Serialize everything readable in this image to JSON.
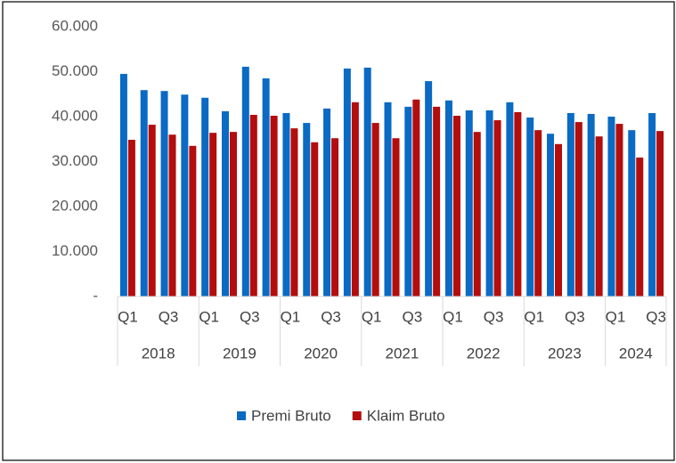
{
  "chart_data": {
    "type": "bar",
    "groups": [
      {
        "name": "2018",
        "quarters": [
          "Q1",
          null,
          "Q3",
          null
        ]
      },
      {
        "name": "2019",
        "quarters": [
          "Q1",
          null,
          "Q3",
          null
        ]
      },
      {
        "name": "2020",
        "quarters": [
          "Q1",
          null,
          "Q3",
          null
        ]
      },
      {
        "name": "2021",
        "quarters": [
          "Q1",
          null,
          "Q3",
          null
        ]
      },
      {
        "name": "2022",
        "quarters": [
          "Q1",
          null,
          "Q3",
          null
        ]
      },
      {
        "name": "2023",
        "quarters": [
          "Q1",
          null,
          "Q3",
          null
        ]
      },
      {
        "name": "2024",
        "quarters": [
          "Q1",
          null,
          "Q3"
        ]
      }
    ],
    "series": [
      {
        "name": "Premi Bruto",
        "color": "#0a6ac4",
        "values": [
          49500,
          45900,
          45700,
          44900,
          44200,
          41200,
          51100,
          48500,
          40800,
          38600,
          41800,
          50700,
          50900,
          43200,
          42200,
          47900,
          43600,
          41400,
          41400,
          43200,
          39800,
          36200,
          40800,
          40600,
          40000,
          37000,
          40800
        ]
      },
      {
        "name": "Klaim Bruto",
        "color": "#b30d0d",
        "values": [
          34850,
          38200,
          36000,
          33500,
          36400,
          36600,
          40400,
          40200,
          37400,
          34300,
          35200,
          43200,
          38600,
          35200,
          43800,
          42200,
          40200,
          36600,
          39200,
          41000,
          37000,
          33900,
          38800,
          35600,
          38400,
          30900,
          36800
        ]
      }
    ],
    "ylim": [
      0,
      60000
    ],
    "yticks": [
      {
        "value": 0,
        "label": "-"
      },
      {
        "value": 10000,
        "label": "10.000"
      },
      {
        "value": 20000,
        "label": "20.000"
      },
      {
        "value": 30000,
        "label": "30.000"
      },
      {
        "value": 40000,
        "label": "40.000"
      },
      {
        "value": 50000,
        "label": "50.000"
      },
      {
        "value": 60000,
        "label": "60.000"
      }
    ],
    "legend": "bottom"
  }
}
